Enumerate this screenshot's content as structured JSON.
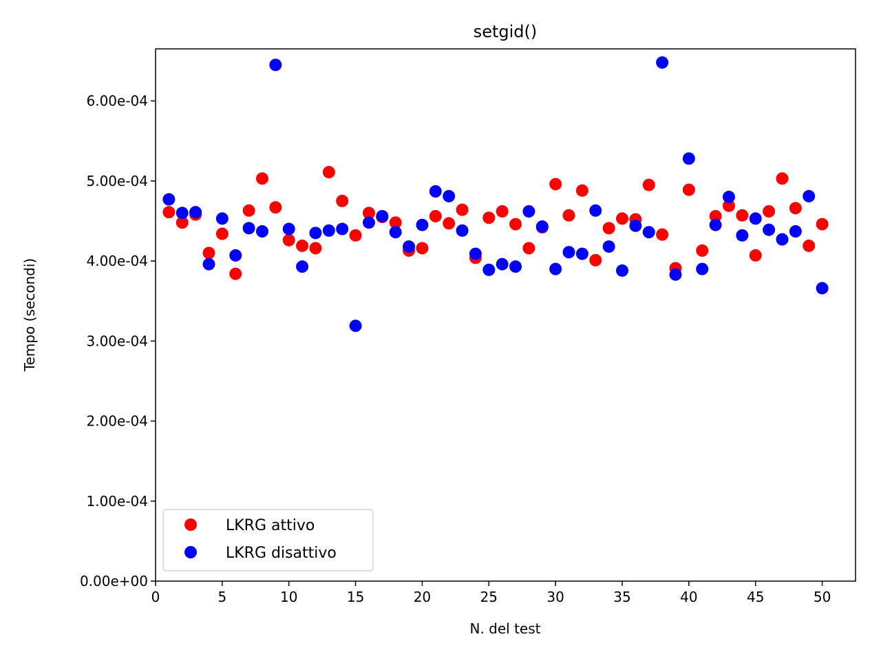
{
  "chart_data": {
    "type": "scatter",
    "title": "setgid()",
    "xlabel": "N. del test",
    "ylabel": "Tempo (secondi)",
    "xlim": [
      0,
      52.5
    ],
    "ylim": [
      0,
      0.000665
    ],
    "x_ticks": [
      0,
      5,
      10,
      15,
      20,
      25,
      30,
      35,
      40,
      45,
      50
    ],
    "x_tick_labels": [
      "0",
      "5",
      "10",
      "15",
      "20",
      "25",
      "30",
      "35",
      "40",
      "45",
      "50"
    ],
    "y_ticks": [
      0,
      0.0001,
      0.0002,
      0.0003,
      0.0004,
      0.0005,
      0.0006
    ],
    "y_tick_labels": [
      "0.00e+00",
      "1.00e-04",
      "2.00e-04",
      "3.00e-04",
      "4.00e-04",
      "5.00e-04",
      "6.00e-04"
    ],
    "grid": false,
    "legend_position": "lower-left",
    "x": [
      1,
      2,
      3,
      4,
      5,
      6,
      7,
      8,
      9,
      10,
      11,
      12,
      13,
      14,
      15,
      16,
      17,
      18,
      19,
      20,
      21,
      22,
      23,
      24,
      25,
      26,
      27,
      28,
      29,
      30,
      31,
      32,
      33,
      34,
      35,
      36,
      37,
      38,
      39,
      40,
      41,
      42,
      43,
      44,
      45,
      46,
      47,
      48,
      49,
      50
    ],
    "series": [
      {
        "name": "LKRG attivo",
        "color": "#ff0000",
        "values": [
          0.000461,
          0.000448,
          0.000458,
          0.00041,
          0.000434,
          0.000384,
          0.000463,
          0.000503,
          0.000467,
          0.000426,
          0.000419,
          0.000416,
          0.000511,
          0.000475,
          0.000432,
          0.00046,
          0.000455,
          0.000448,
          0.000413,
          0.000416,
          0.000456,
          0.000447,
          0.000464,
          0.000404,
          0.000454,
          0.000462,
          0.000446,
          0.000416,
          0.000442,
          0.000496,
          0.000457,
          0.000488,
          0.000401,
          0.000441,
          0.000453,
          0.000452,
          0.000495,
          0.000433,
          0.000391,
          0.000489,
          0.000413,
          0.000456,
          0.000469,
          0.000457,
          0.000407,
          0.000462,
          0.000503,
          0.000466,
          0.000419,
          0.000446
        ]
      },
      {
        "name": "LKRG disattivo",
        "color": "#0000ff",
        "values": [
          0.000477,
          0.00046,
          0.000461,
          0.000396,
          0.000453,
          0.000407,
          0.000441,
          0.000437,
          0.000645,
          0.00044,
          0.000393,
          0.000435,
          0.000438,
          0.00044,
          0.000319,
          0.000448,
          0.000456,
          0.000436,
          0.000418,
          0.000445,
          0.000487,
          0.000481,
          0.000438,
          0.000409,
          0.000389,
          0.000396,
          0.000393,
          0.000462,
          0.000443,
          0.00039,
          0.000411,
          0.000409,
          0.000463,
          0.000418,
          0.000388,
          0.000444,
          0.000436,
          0.000648,
          0.000383,
          0.000528,
          0.00039,
          0.000445,
          0.00048,
          0.000432,
          0.000453,
          0.000439,
          0.000427,
          0.000437,
          0.000481,
          0.000366
        ]
      }
    ]
  }
}
